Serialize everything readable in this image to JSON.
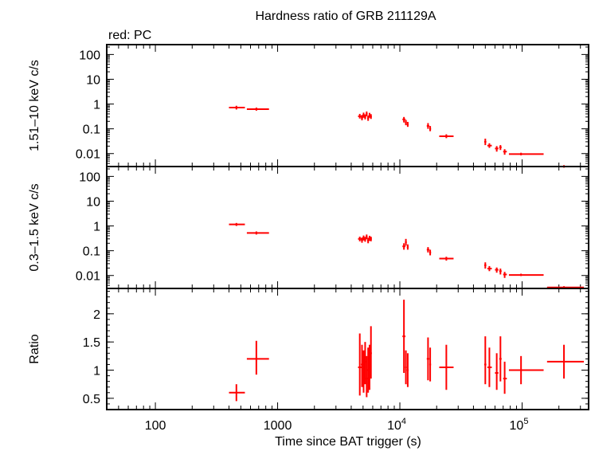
{
  "chart_data": {
    "type": "scatter",
    "title": "Hardness ratio of GRB 211129A",
    "subtitle": "red: PC",
    "xlabel": "Time since BAT trigger (s)",
    "x_scale": "log",
    "xlim": [
      40,
      350000
    ],
    "x_tick_labels": [
      {
        "value": 100,
        "label": "100"
      },
      {
        "value": 1000,
        "label": "1000"
      },
      {
        "value": 10000,
        "label": "10",
        "exp": "4"
      },
      {
        "value": 100000,
        "label": "10",
        "exp": "5"
      }
    ],
    "series_color": "#ff0000",
    "panels": [
      {
        "ylabel": "1.51–10 keV c/s",
        "y_scale": "log",
        "ylim": [
          0.003,
          250
        ],
        "y_ticks": [
          {
            "value": 100,
            "label": "100"
          },
          {
            "value": 10,
            "label": "10"
          },
          {
            "value": 1,
            "label": "1"
          },
          {
            "value": 0.1,
            "label": "0.1"
          },
          {
            "value": 0.01,
            "label": "0.01"
          }
        ],
        "points": [
          {
            "x": 460,
            "xlo": 400,
            "xhi": 540,
            "y": 0.72,
            "ylo": 0.6,
            "yhi": 0.85
          },
          {
            "x": 670,
            "xlo": 560,
            "xhi": 850,
            "y": 0.62,
            "ylo": 0.54,
            "yhi": 0.72
          },
          {
            "x": 4700,
            "xlo": 4550,
            "xhi": 4850,
            "y": 0.32,
            "ylo": 0.26,
            "yhi": 0.4
          },
          {
            "x": 4900,
            "xlo": 4800,
            "xhi": 5000,
            "y": 0.28,
            "ylo": 0.22,
            "yhi": 0.36
          },
          {
            "x": 5050,
            "xlo": 4950,
            "xhi": 5150,
            "y": 0.36,
            "ylo": 0.28,
            "yhi": 0.45
          },
          {
            "x": 5200,
            "xlo": 5100,
            "xhi": 5300,
            "y": 0.3,
            "ylo": 0.24,
            "yhi": 0.38
          },
          {
            "x": 5350,
            "xlo": 5250,
            "xhi": 5450,
            "y": 0.4,
            "ylo": 0.32,
            "yhi": 0.5
          },
          {
            "x": 5500,
            "xlo": 5400,
            "xhi": 5600,
            "y": 0.27,
            "ylo": 0.21,
            "yhi": 0.34
          },
          {
            "x": 5650,
            "xlo": 5550,
            "xhi": 5750,
            "y": 0.35,
            "ylo": 0.28,
            "yhi": 0.44
          },
          {
            "x": 5800,
            "xlo": 5700,
            "xhi": 5900,
            "y": 0.31,
            "ylo": 0.25,
            "yhi": 0.39
          },
          {
            "x": 10800,
            "xlo": 10500,
            "xhi": 11100,
            "y": 0.24,
            "ylo": 0.18,
            "yhi": 0.3
          },
          {
            "x": 11200,
            "xlo": 11000,
            "xhi": 11400,
            "y": 0.18,
            "ylo": 0.14,
            "yhi": 0.23
          },
          {
            "x": 11600,
            "xlo": 11400,
            "xhi": 11800,
            "y": 0.15,
            "ylo": 0.12,
            "yhi": 0.19
          },
          {
            "x": 17000,
            "xlo": 16600,
            "xhi": 17400,
            "y": 0.13,
            "ylo": 0.1,
            "yhi": 0.17
          },
          {
            "x": 17700,
            "xlo": 17400,
            "xhi": 18000,
            "y": 0.1,
            "ylo": 0.08,
            "yhi": 0.13
          },
          {
            "x": 24000,
            "xlo": 21000,
            "xhi": 27500,
            "y": 0.05,
            "ylo": 0.042,
            "yhi": 0.06
          },
          {
            "x": 50000,
            "xlo": 49000,
            "xhi": 51000,
            "y": 0.03,
            "ylo": 0.022,
            "yhi": 0.04
          },
          {
            "x": 54000,
            "xlo": 52000,
            "xhi": 56500,
            "y": 0.021,
            "ylo": 0.017,
            "yhi": 0.026
          },
          {
            "x": 62000,
            "xlo": 60000,
            "xhi": 64000,
            "y": 0.016,
            "ylo": 0.012,
            "yhi": 0.02
          },
          {
            "x": 66500,
            "xlo": 65000,
            "xhi": 68000,
            "y": 0.018,
            "ylo": 0.014,
            "yhi": 0.022
          },
          {
            "x": 72000,
            "xlo": 70000,
            "xhi": 75000,
            "y": 0.012,
            "ylo": 0.009,
            "yhi": 0.015
          },
          {
            "x": 98000,
            "xlo": 78000,
            "xhi": 150000,
            "y": 0.0095,
            "ylo": 0.0085,
            "yhi": 0.0108
          },
          {
            "x": 220000,
            "xlo": 160000,
            "xhi": 320000,
            "y": 0.003,
            "ylo": 0.0027,
            "yhi": 0.0034
          }
        ]
      },
      {
        "ylabel": "0.3–1.5 keV c/s",
        "y_scale": "log",
        "ylim": [
          0.003,
          250
        ],
        "y_ticks": [
          {
            "value": 100,
            "label": "100"
          },
          {
            "value": 10,
            "label": "10"
          },
          {
            "value": 1,
            "label": "1"
          },
          {
            "value": 0.1,
            "label": "0.1"
          },
          {
            "value": 0.01,
            "label": "0.01"
          }
        ],
        "points": [
          {
            "x": 460,
            "xlo": 400,
            "xhi": 540,
            "y": 1.15,
            "ylo": 1.0,
            "yhi": 1.32
          },
          {
            "x": 670,
            "xlo": 560,
            "xhi": 850,
            "y": 0.52,
            "ylo": 0.45,
            "yhi": 0.6
          },
          {
            "x": 4700,
            "xlo": 4550,
            "xhi": 4850,
            "y": 0.3,
            "ylo": 0.24,
            "yhi": 0.37
          },
          {
            "x": 4900,
            "xlo": 4800,
            "xhi": 5000,
            "y": 0.27,
            "ylo": 0.21,
            "yhi": 0.34
          },
          {
            "x": 5050,
            "xlo": 4950,
            "xhi": 5150,
            "y": 0.33,
            "ylo": 0.26,
            "yhi": 0.41
          },
          {
            "x": 5200,
            "xlo": 5100,
            "xhi": 5300,
            "y": 0.29,
            "ylo": 0.23,
            "yhi": 0.36
          },
          {
            "x": 5350,
            "xlo": 5250,
            "xhi": 5450,
            "y": 0.36,
            "ylo": 0.29,
            "yhi": 0.45
          },
          {
            "x": 5500,
            "xlo": 5400,
            "xhi": 5600,
            "y": 0.26,
            "ylo": 0.2,
            "yhi": 0.33
          },
          {
            "x": 5650,
            "xlo": 5550,
            "xhi": 5750,
            "y": 0.32,
            "ylo": 0.25,
            "yhi": 0.4
          },
          {
            "x": 5800,
            "xlo": 5700,
            "xhi": 5900,
            "y": 0.3,
            "ylo": 0.24,
            "yhi": 0.37
          },
          {
            "x": 10800,
            "xlo": 10500,
            "xhi": 11100,
            "y": 0.15,
            "ylo": 0.11,
            "yhi": 0.2
          },
          {
            "x": 11200,
            "xlo": 11000,
            "xhi": 11400,
            "y": 0.22,
            "ylo": 0.16,
            "yhi": 0.3
          },
          {
            "x": 11600,
            "xlo": 11400,
            "xhi": 11800,
            "y": 0.14,
            "ylo": 0.11,
            "yhi": 0.18
          },
          {
            "x": 17000,
            "xlo": 16600,
            "xhi": 17400,
            "y": 0.11,
            "ylo": 0.085,
            "yhi": 0.14
          },
          {
            "x": 17700,
            "xlo": 17400,
            "xhi": 18000,
            "y": 0.085,
            "ylo": 0.065,
            "yhi": 0.11
          },
          {
            "x": 24000,
            "xlo": 21000,
            "xhi": 27500,
            "y": 0.048,
            "ylo": 0.04,
            "yhi": 0.057
          },
          {
            "x": 50000,
            "xlo": 49000,
            "xhi": 51000,
            "y": 0.026,
            "ylo": 0.019,
            "yhi": 0.034
          },
          {
            "x": 54000,
            "xlo": 52000,
            "xhi": 56500,
            "y": 0.019,
            "ylo": 0.015,
            "yhi": 0.024
          },
          {
            "x": 62000,
            "xlo": 60000,
            "xhi": 64000,
            "y": 0.017,
            "ylo": 0.013,
            "yhi": 0.021
          },
          {
            "x": 66500,
            "xlo": 65000,
            "xhi": 68000,
            "y": 0.015,
            "ylo": 0.011,
            "yhi": 0.019
          },
          {
            "x": 72000,
            "xlo": 70000,
            "xhi": 75000,
            "y": 0.011,
            "ylo": 0.008,
            "yhi": 0.014
          },
          {
            "x": 98000,
            "xlo": 78000,
            "xhi": 150000,
            "y": 0.0105,
            "ylo": 0.0095,
            "yhi": 0.0118
          },
          {
            "x": 220000,
            "xlo": 160000,
            "xhi": 320000,
            "y": 0.0033,
            "ylo": 0.003,
            "yhi": 0.0037
          }
        ]
      },
      {
        "ylabel": "Ratio",
        "y_scale": "linear",
        "ylim": [
          0.3,
          2.45
        ],
        "y_ticks": [
          {
            "value": 2,
            "label": "2"
          },
          {
            "value": 1.5,
            "label": "1.5"
          },
          {
            "value": 1,
            "label": "1"
          },
          {
            "value": 0.5,
            "label": "0.5"
          }
        ],
        "points": [
          {
            "x": 460,
            "xlo": 400,
            "xhi": 540,
            "y": 0.6,
            "ylo": 0.45,
            "yhi": 0.75
          },
          {
            "x": 670,
            "xlo": 560,
            "xhi": 850,
            "y": 1.2,
            "ylo": 0.92,
            "yhi": 1.52
          },
          {
            "x": 4700,
            "xlo": 4550,
            "xhi": 4850,
            "y": 1.05,
            "ylo": 0.55,
            "yhi": 1.65
          },
          {
            "x": 4900,
            "xlo": 4800,
            "xhi": 5000,
            "y": 1.1,
            "ylo": 0.7,
            "yhi": 1.45
          },
          {
            "x": 5050,
            "xlo": 4950,
            "xhi": 5150,
            "y": 0.95,
            "ylo": 0.6,
            "yhi": 1.35
          },
          {
            "x": 5200,
            "xlo": 5100,
            "xhi": 5300,
            "y": 1.15,
            "ylo": 0.75,
            "yhi": 1.5
          },
          {
            "x": 5350,
            "xlo": 5250,
            "xhi": 5450,
            "y": 0.85,
            "ylo": 0.52,
            "yhi": 1.25
          },
          {
            "x": 5500,
            "xlo": 5400,
            "xhi": 5600,
            "y": 1.0,
            "ylo": 0.6,
            "yhi": 1.4
          },
          {
            "x": 5650,
            "xlo": 5550,
            "xhi": 5750,
            "y": 1.05,
            "ylo": 0.65,
            "yhi": 1.45
          },
          {
            "x": 5800,
            "xlo": 5700,
            "xhi": 5900,
            "y": 1.3,
            "ylo": 0.85,
            "yhi": 1.78
          },
          {
            "x": 10800,
            "xlo": 10500,
            "xhi": 11100,
            "y": 1.6,
            "ylo": 0.95,
            "yhi": 2.25
          },
          {
            "x": 11200,
            "xlo": 11000,
            "xhi": 11400,
            "y": 1.05,
            "ylo": 0.75,
            "yhi": 1.35
          },
          {
            "x": 11600,
            "xlo": 11400,
            "xhi": 11800,
            "y": 1.0,
            "ylo": 0.7,
            "yhi": 1.3
          },
          {
            "x": 17000,
            "xlo": 16600,
            "xhi": 17400,
            "y": 1.2,
            "ylo": 0.82,
            "yhi": 1.58
          },
          {
            "x": 17700,
            "xlo": 17400,
            "xhi": 18000,
            "y": 1.1,
            "ylo": 0.8,
            "yhi": 1.4
          },
          {
            "x": 24000,
            "xlo": 21000,
            "xhi": 27500,
            "y": 1.05,
            "ylo": 0.65,
            "yhi": 1.45
          },
          {
            "x": 50000,
            "xlo": 49000,
            "xhi": 51000,
            "y": 1.1,
            "ylo": 0.75,
            "yhi": 1.6
          },
          {
            "x": 54000,
            "xlo": 52000,
            "xhi": 56500,
            "y": 1.05,
            "ylo": 0.7,
            "yhi": 1.4
          },
          {
            "x": 62000,
            "xlo": 60000,
            "xhi": 64000,
            "y": 0.95,
            "ylo": 0.65,
            "yhi": 1.3
          },
          {
            "x": 66500,
            "xlo": 65000,
            "xhi": 68000,
            "y": 1.2,
            "ylo": 0.8,
            "yhi": 1.6
          },
          {
            "x": 72000,
            "xlo": 70000,
            "xhi": 75000,
            "y": 0.85,
            "ylo": 0.58,
            "yhi": 1.15
          },
          {
            "x": 98000,
            "xlo": 78000,
            "xhi": 150000,
            "y": 1.0,
            "ylo": 0.75,
            "yhi": 1.25
          },
          {
            "x": 220000,
            "xlo": 160000,
            "xhi": 320000,
            "y": 1.15,
            "ylo": 0.85,
            "yhi": 1.45
          }
        ]
      }
    ]
  }
}
